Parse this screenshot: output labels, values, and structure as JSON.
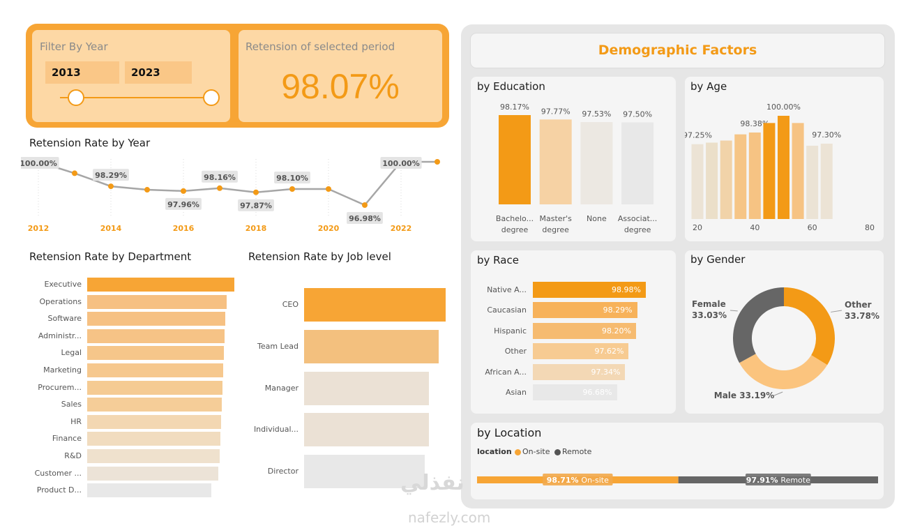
{
  "filter": {
    "title": "Filter By Year",
    "start_year": "2013",
    "end_year": "2023"
  },
  "kpi": {
    "title": "Retension of selected period",
    "value": "98.07%"
  },
  "colors": {
    "accent": "#f39a16",
    "accent_light": "#fdd8a5",
    "panel_bg": "#e6e6e6",
    "grey_dark": "#666666"
  },
  "year_chart": {
    "title": "Retension Rate by Year"
  },
  "dept_chart": {
    "title": "Retension Rate by Department"
  },
  "job_chart": {
    "title": "Retension Rate by Job level"
  },
  "demographics": {
    "title": "Demographic Factors",
    "education_title": "by Education",
    "age_title": "by Age",
    "race_title": "by Race",
    "gender_title": "by Gender",
    "location_title": "by Location",
    "location_legend_label": "location",
    "location_legend_onsite": "On-site",
    "location_legend_remote": "Remote"
  },
  "watermark": {
    "text": "نفذلي",
    "sub": "nafezly.com"
  },
  "chart_data": [
    {
      "id": "year",
      "type": "line",
      "title": "Retension Rate by Year",
      "x": [
        2012,
        2013,
        2014,
        2015,
        2016,
        2017,
        2018,
        2019,
        2020,
        2021,
        2022,
        2023
      ],
      "values": [
        100.0,
        99.2,
        98.29,
        98.05,
        97.96,
        98.16,
        97.87,
        98.1,
        98.1,
        96.98,
        100.0,
        100.0
      ],
      "data_labels": [
        "100.00%",
        "",
        "98.29%",
        "",
        "97.96%",
        "98.16%",
        "97.87%",
        "98.10%",
        "",
        "96.98%",
        "100.00%",
        ""
      ],
      "x_ticks": [
        "2012",
        "2014",
        "2016",
        "2018",
        "2020",
        "2022"
      ]
    },
    {
      "id": "department",
      "type": "bar",
      "title": "Retension Rate by Department",
      "orientation": "horizontal",
      "categories": [
        "Executive",
        "Operations",
        "Software",
        "Administr...",
        "Legal",
        "Marketing",
        "Procurem...",
        "Sales",
        "HR",
        "Finance",
        "R&D",
        "Customer ...",
        "Product D..."
      ],
      "values": [
        100.0,
        99.0,
        98.8,
        98.7,
        98.6,
        98.5,
        98.4,
        98.3,
        98.2,
        98.1,
        98.0,
        97.8,
        96.9
      ],
      "colors": [
        "#f7a535",
        "#f6c082",
        "#f6c183",
        "#f6c386",
        "#f6c68a",
        "#f6c88e",
        "#f5cb93",
        "#f5cd98",
        "#f3d7b2",
        "#f1dcbf",
        "#efe1cd",
        "#ece3d7",
        "#e8e8e8"
      ]
    },
    {
      "id": "job_level",
      "type": "bar",
      "title": "Retension Rate by Job level",
      "orientation": "horizontal",
      "categories": [
        "CEO",
        "Team Lead",
        "Manager",
        "Individual...",
        "Director"
      ],
      "values": [
        100.0,
        99.5,
        98.8,
        98.8,
        98.5
      ],
      "colors": [
        "#f7a535",
        "#f3c07e",
        "#ebe1d5",
        "#ebe1d5",
        "#e8e8e8"
      ]
    },
    {
      "id": "education",
      "type": "bar",
      "title": "by Education",
      "categories": [
        "Bachelo... degree",
        "Master's degree",
        "None",
        "Associat... degree"
      ],
      "values": [
        98.17,
        97.77,
        97.53,
        97.5
      ],
      "data_labels": [
        "98.17%",
        "97.77%",
        "97.53%",
        "97.50%"
      ],
      "colors": [
        "#f39a16",
        "#f6d2a4",
        "#ece8e2",
        "#e8e8e8"
      ]
    },
    {
      "id": "age",
      "type": "bar",
      "title": "by Age",
      "x": [
        20,
        25,
        30,
        35,
        40,
        45,
        50,
        55,
        60,
        65
      ],
      "values": [
        97.25,
        97.4,
        97.6,
        98.2,
        98.38,
        99.3,
        100.0,
        99.3,
        97.1,
        97.3
      ],
      "data_labels": [
        "97.25%",
        "",
        "",
        "",
        "98.38%",
        "",
        "100.00%",
        "",
        "",
        "97.30%"
      ],
      "x_ticks": [
        "20",
        "40",
        "60",
        "80"
      ],
      "colors": [
        "#ece3d5",
        "#ebdfc9",
        "#f1d3a9",
        "#f6c586",
        "#f6c383",
        "#f39a16",
        "#f39a16",
        "#f6c383",
        "#ebe3d5",
        "#ece3d5"
      ]
    },
    {
      "id": "race",
      "type": "bar",
      "title": "by Race",
      "orientation": "horizontal",
      "categories": [
        "Native A...",
        "Caucasian",
        "Hispanic",
        "Other",
        "African A...",
        "Asian"
      ],
      "values": [
        98.98,
        98.29,
        98.2,
        97.62,
        97.34,
        96.68
      ],
      "data_labels": [
        "98.98%",
        "98.29%",
        "98.20%",
        "97.62%",
        "97.34%",
        "96.68%"
      ],
      "colors": [
        "#f39a16",
        "#f7b25a",
        "#f6bb70",
        "#f7cb92",
        "#f3d8b5",
        "#e8e8e8"
      ]
    },
    {
      "id": "gender",
      "type": "pie",
      "title": "by Gender",
      "categories": [
        "Other",
        "Male",
        "Female"
      ],
      "values": [
        33.78,
        33.19,
        33.03
      ],
      "label_names": [
        "Other",
        "Male",
        "Female"
      ],
      "data_labels": [
        "33.78%",
        "33.19%",
        "33.03%"
      ],
      "colors": [
        "#f39a16",
        "#fbc47e",
        "#666666"
      ]
    },
    {
      "id": "location",
      "type": "bar",
      "title": "by Location",
      "categories": [
        "On-site",
        "Remote"
      ],
      "values": [
        98.71,
        97.91
      ],
      "data_labels": [
        "98.71%",
        "97.91%"
      ],
      "colors": [
        "#f7a535",
        "#666666"
      ]
    }
  ]
}
